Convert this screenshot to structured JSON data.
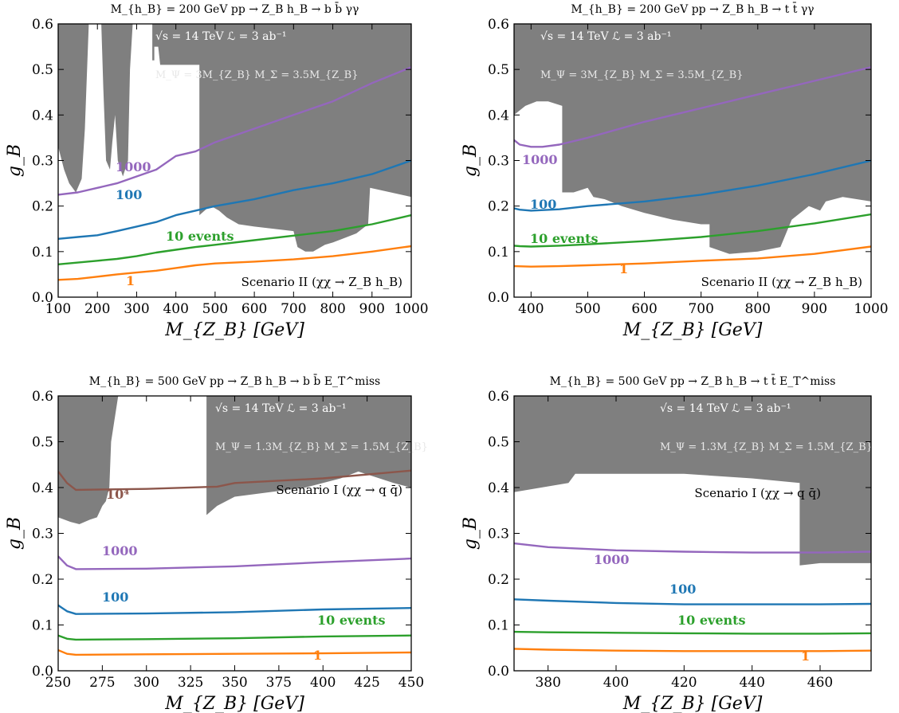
{
  "figure": {
    "colors": {
      "excluded": "#7f7f7f",
      "purple": "#9467bd",
      "blue": "#1f77b4",
      "green": "#2ca02c",
      "orange": "#ff7f0e",
      "brown": "#8c564b"
    }
  },
  "chart_data": [
    {
      "type": "line",
      "title": "M_{h_B} = 200 GeV    pp → Z_B h_B → b b̄ γγ",
      "xlabel": "M_{Z_B} [GeV]",
      "ylabel": "g_B",
      "xlim": [
        100,
        1000
      ],
      "ylim": [
        0,
        0.6
      ],
      "xticks": [
        100,
        200,
        300,
        400,
        500,
        600,
        700,
        800,
        900,
        1000
      ],
      "yticks": [
        0.0,
        0.1,
        0.2,
        0.3,
        0.4,
        0.5,
        0.6
      ],
      "inset_text": [
        "√s = 14 TeV   ℒ = 3 ab⁻¹",
        "M_Ψ = 3M_{Z_B}   M_Σ = 3.5M_{Z_B}"
      ],
      "scenario": "Scenario II (χχ → Z_B h_B)",
      "excluded_region": [
        [
          100,
          0.6
        ],
        [
          100,
          0.33
        ],
        [
          115,
          0.28
        ],
        [
          128,
          0.25
        ],
        [
          145,
          0.23
        ],
        [
          160,
          0.26
        ],
        [
          168,
          0.37
        ],
        [
          178,
          0.6
        ],
        [
          210,
          0.6
        ],
        [
          215,
          0.46
        ],
        [
          222,
          0.3
        ],
        [
          232,
          0.28
        ],
        [
          238,
          0.34
        ],
        [
          245,
          0.4
        ],
        [
          252,
          0.3
        ],
        [
          265,
          0.265
        ],
        [
          278,
          0.3
        ],
        [
          283,
          0.5
        ],
        [
          290,
          0.6
        ],
        [
          340,
          0.6
        ],
        [
          340,
          0.52
        ],
        [
          345,
          0.52
        ],
        [
          345,
          0.55
        ],
        [
          355,
          0.55
        ],
        [
          360,
          0.51
        ],
        [
          460,
          0.51
        ],
        [
          460,
          0.18
        ],
        [
          480,
          0.195
        ],
        [
          490,
          0.2
        ],
        [
          510,
          0.19
        ],
        [
          530,
          0.175
        ],
        [
          560,
          0.16
        ],
        [
          600,
          0.155
        ],
        [
          650,
          0.15
        ],
        [
          700,
          0.145
        ],
        [
          710,
          0.11
        ],
        [
          730,
          0.1
        ],
        [
          750,
          0.1
        ],
        [
          780,
          0.115
        ],
        [
          800,
          0.12
        ],
        [
          830,
          0.13
        ],
        [
          860,
          0.14
        ],
        [
          890,
          0.16
        ],
        [
          895,
          0.24
        ],
        [
          1000,
          0.22
        ],
        [
          1000,
          0.6
        ]
      ],
      "series": [
        {
          "name": "1000",
          "x": [
            100,
            150,
            200,
            250,
            300,
            350,
            400,
            450,
            500,
            600,
            700,
            800,
            900,
            1000
          ],
          "y": [
            0.225,
            0.23,
            0.24,
            0.25,
            0.265,
            0.28,
            0.31,
            0.32,
            0.34,
            0.37,
            0.4,
            0.43,
            0.47,
            0.505
          ]
        },
        {
          "name": "100",
          "x": [
            100,
            150,
            200,
            250,
            300,
            350,
            400,
            450,
            500,
            600,
            700,
            800,
            900,
            1000
          ],
          "y": [
            0.128,
            0.132,
            0.136,
            0.145,
            0.155,
            0.165,
            0.18,
            0.19,
            0.2,
            0.215,
            0.235,
            0.25,
            0.27,
            0.3
          ]
        },
        {
          "name": "10 events",
          "x": [
            100,
            150,
            200,
            250,
            300,
            350,
            400,
            450,
            500,
            600,
            700,
            800,
            900,
            1000
          ],
          "y": [
            0.072,
            0.076,
            0.08,
            0.084,
            0.09,
            0.098,
            0.104,
            0.11,
            0.115,
            0.125,
            0.135,
            0.145,
            0.16,
            0.18
          ]
        },
        {
          "name": "1",
          "x": [
            100,
            150,
            200,
            250,
            300,
            350,
            400,
            450,
            500,
            600,
            700,
            800,
            900,
            1000
          ],
          "y": [
            0.038,
            0.04,
            0.045,
            0.05,
            0.054,
            0.058,
            0.064,
            0.07,
            0.074,
            0.078,
            0.083,
            0.09,
            0.1,
            0.112
          ]
        }
      ]
    },
    {
      "type": "line",
      "title": "M_{h_B} = 200 GeV    pp → Z_B h_B → t t̄ γγ",
      "xlabel": "M_{Z_B} [GeV]",
      "ylabel": "g_B",
      "xlim": [
        370,
        1000
      ],
      "ylim": [
        0,
        0.6
      ],
      "xticks": [
        400,
        500,
        600,
        700,
        800,
        900,
        1000
      ],
      "yticks": [
        0.0,
        0.1,
        0.2,
        0.3,
        0.4,
        0.5,
        0.6
      ],
      "inset_text": [
        "√s = 14 TeV   ℒ = 3 ab⁻¹",
        "M_Ψ = 3M_{Z_B}   M_Σ = 3.5M_{Z_B}"
      ],
      "scenario": "Scenario II (χχ → Z_B h_B)",
      "excluded_region": [
        [
          370,
          0.6
        ],
        [
          370,
          0.4
        ],
        [
          390,
          0.42
        ],
        [
          410,
          0.43
        ],
        [
          430,
          0.43
        ],
        [
          455,
          0.42
        ],
        [
          455,
          0.23
        ],
        [
          475,
          0.23
        ],
        [
          500,
          0.24
        ],
        [
          510,
          0.22
        ],
        [
          530,
          0.215
        ],
        [
          560,
          0.2
        ],
        [
          600,
          0.185
        ],
        [
          650,
          0.17
        ],
        [
          700,
          0.16
        ],
        [
          715,
          0.16
        ],
        [
          715,
          0.11
        ],
        [
          750,
          0.095
        ],
        [
          800,
          0.1
        ],
        [
          840,
          0.11
        ],
        [
          860,
          0.17
        ],
        [
          890,
          0.2
        ],
        [
          910,
          0.19
        ],
        [
          920,
          0.21
        ],
        [
          950,
          0.22
        ],
        [
          1000,
          0.21
        ],
        [
          1000,
          0.6
        ]
      ],
      "series": [
        {
          "name": "1000",
          "x": [
            370,
            380,
            400,
            420,
            450,
            500,
            600,
            700,
            800,
            900,
            1000
          ],
          "y": [
            0.345,
            0.335,
            0.33,
            0.33,
            0.335,
            0.35,
            0.385,
            0.415,
            0.445,
            0.475,
            0.505
          ]
        },
        {
          "name": "100",
          "x": [
            370,
            380,
            400,
            450,
            500,
            600,
            700,
            800,
            900,
            1000
          ],
          "y": [
            0.195,
            0.192,
            0.19,
            0.193,
            0.2,
            0.21,
            0.225,
            0.245,
            0.27,
            0.3
          ]
        },
        {
          "name": "10 events",
          "x": [
            370,
            380,
            400,
            450,
            500,
            600,
            700,
            800,
            900,
            1000
          ],
          "y": [
            0.113,
            0.112,
            0.111,
            0.113,
            0.116,
            0.123,
            0.132,
            0.145,
            0.162,
            0.182
          ]
        },
        {
          "name": "1",
          "x": [
            370,
            400,
            450,
            500,
            600,
            700,
            800,
            900,
            1000
          ],
          "y": [
            0.068,
            0.067,
            0.068,
            0.07,
            0.074,
            0.08,
            0.085,
            0.095,
            0.111
          ]
        }
      ]
    },
    {
      "type": "line",
      "title": "M_{h_B} = 500 GeV    pp → Z_B h_B → b b̄ E_T^miss",
      "xlabel": "M_{Z_B} [GeV]",
      "ylabel": "g_B",
      "xlim": [
        250,
        450
      ],
      "ylim": [
        0,
        0.6
      ],
      "xticks": [
        250,
        275,
        300,
        325,
        350,
        375,
        400,
        425,
        450
      ],
      "yticks": [
        0.0,
        0.1,
        0.2,
        0.3,
        0.4,
        0.5,
        0.6
      ],
      "inset_text": [
        "√s = 14 TeV   ℒ = 3 ab⁻¹",
        "M_Ψ = 1.3M_{Z_B}   M_Σ = 1.5M_{Z_B}"
      ],
      "scenario": "Scenario I (χχ → q q̄)",
      "excluded_region": [
        [
          250,
          0.6
        ],
        [
          250,
          0.335
        ],
        [
          257,
          0.325
        ],
        [
          262,
          0.32
        ],
        [
          268,
          0.33
        ],
        [
          272,
          0.335
        ],
        [
          275,
          0.36
        ],
        [
          277,
          0.37
        ],
        [
          279,
          0.4
        ],
        [
          280,
          0.5
        ],
        [
          284,
          0.6
        ],
        [
          334,
          0.6
        ],
        [
          334,
          0.34
        ],
        [
          340,
          0.36
        ],
        [
          350,
          0.38
        ],
        [
          370,
          0.39
        ],
        [
          390,
          0.4
        ],
        [
          410,
          0.42
        ],
        [
          420,
          0.435
        ],
        [
          440,
          0.41
        ],
        [
          450,
          0.4
        ],
        [
          450,
          0.6
        ]
      ],
      "series": [
        {
          "name": "10⁴",
          "x": [
            250,
            255,
            260,
            300,
            340,
            350,
            400,
            450
          ],
          "y": [
            0.435,
            0.41,
            0.395,
            0.397,
            0.402,
            0.41,
            0.42,
            0.437
          ]
        },
        {
          "name": "1000",
          "x": [
            250,
            255,
            260,
            300,
            350,
            400,
            450
          ],
          "y": [
            0.25,
            0.23,
            0.222,
            0.223,
            0.228,
            0.237,
            0.245
          ]
        },
        {
          "name": "100",
          "x": [
            250,
            255,
            260,
            300,
            350,
            400,
            450
          ],
          "y": [
            0.143,
            0.13,
            0.124,
            0.125,
            0.128,
            0.134,
            0.137
          ]
        },
        {
          "name": "10 events",
          "x": [
            250,
            255,
            260,
            300,
            350,
            400,
            450
          ],
          "y": [
            0.077,
            0.07,
            0.068,
            0.069,
            0.071,
            0.075,
            0.077
          ]
        },
        {
          "name": "1",
          "x": [
            250,
            255,
            260,
            300,
            350,
            400,
            450
          ],
          "y": [
            0.045,
            0.037,
            0.035,
            0.036,
            0.037,
            0.038,
            0.04
          ]
        }
      ]
    },
    {
      "type": "line",
      "title": "M_{h_B} = 500 GeV    pp → Z_B h_B → t t̄ E_T^miss",
      "xlabel": "M_{Z_B} [GeV]",
      "ylabel": "g_B",
      "xlim": [
        370,
        475
      ],
      "ylim": [
        0,
        0.6
      ],
      "xticks": [
        380,
        400,
        420,
        440,
        460
      ],
      "yticks": [
        0.0,
        0.1,
        0.2,
        0.3,
        0.4,
        0.5,
        0.6
      ],
      "inset_text": [
        "√s = 14 TeV   ℒ = 3 ab⁻¹",
        "M_Ψ = 1.3M_{Z_B}   M_Σ = 1.5M_{Z_B}"
      ],
      "scenario": "Scenario I (χχ → q q̄)",
      "excluded_region": [
        [
          370,
          0.6
        ],
        [
          370,
          0.39
        ],
        [
          378,
          0.4
        ],
        [
          386,
          0.41
        ],
        [
          388,
          0.43
        ],
        [
          400,
          0.43
        ],
        [
          420,
          0.43
        ],
        [
          440,
          0.42
        ],
        [
          454,
          0.41
        ],
        [
          454,
          0.23
        ],
        [
          460,
          0.235
        ],
        [
          475,
          0.235
        ],
        [
          475,
          0.6
        ]
      ],
      "series": [
        {
          "name": "1000",
          "x": [
            370,
            380,
            400,
            420,
            440,
            460,
            475
          ],
          "y": [
            0.278,
            0.27,
            0.263,
            0.26,
            0.258,
            0.258,
            0.26
          ]
        },
        {
          "name": "100",
          "x": [
            370,
            380,
            400,
            420,
            440,
            460,
            475
          ],
          "y": [
            0.156,
            0.153,
            0.148,
            0.145,
            0.145,
            0.145,
            0.146
          ]
        },
        {
          "name": "10 events",
          "x": [
            370,
            380,
            400,
            420,
            440,
            460,
            475
          ],
          "y": [
            0.085,
            0.084,
            0.083,
            0.082,
            0.081,
            0.081,
            0.082
          ]
        },
        {
          "name": "1",
          "x": [
            370,
            380,
            400,
            420,
            440,
            460,
            475
          ],
          "y": [
            0.048,
            0.046,
            0.044,
            0.043,
            0.043,
            0.043,
            0.044
          ]
        }
      ]
    }
  ]
}
